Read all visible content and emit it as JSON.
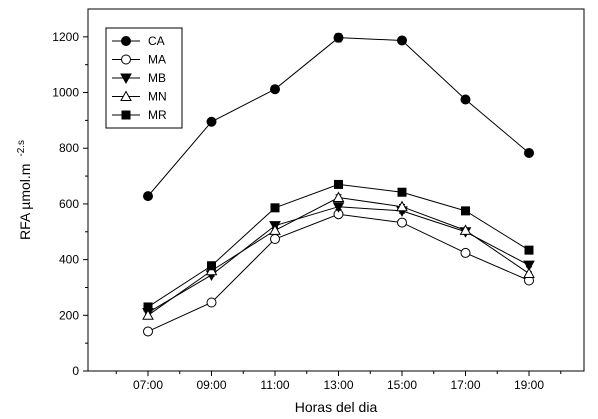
{
  "chart_data": {
    "type": "line",
    "title": "",
    "xlabel": "Horas del dia",
    "ylabel": "RFA µmol.m",
    "ylabel_superscript": "-2.s",
    "categories": [
      "07:00",
      "09:00",
      "11:00",
      "13:00",
      "15:00",
      "17:00",
      "19:00"
    ],
    "ylim": [
      0,
      1300
    ],
    "yticks": [
      0,
      200,
      400,
      600,
      800,
      1000,
      1200
    ],
    "grid": false,
    "legend_position": "top-left",
    "series": [
      {
        "name": "CA",
        "marker": "circle-filled",
        "values": [
          628,
          895,
          1012,
          1197,
          1187,
          975,
          783
        ],
        "errors": [
          8,
          8,
          8,
          15,
          10,
          8,
          8
        ]
      },
      {
        "name": "MA",
        "marker": "circle-open",
        "values": [
          142,
          246,
          474,
          563,
          533,
          424,
          325
        ],
        "errors": [
          5,
          6,
          12,
          10,
          8,
          6,
          6
        ]
      },
      {
        "name": "MB",
        "marker": "triangle-down-filled",
        "values": [
          210,
          345,
          522,
          590,
          575,
          500,
          380
        ],
        "errors": [
          5,
          6,
          10,
          10,
          8,
          6,
          6
        ]
      },
      {
        "name": "MN",
        "marker": "triangle-up-open",
        "values": [
          200,
          360,
          505,
          623,
          590,
          505,
          350
        ],
        "errors": [
          5,
          6,
          10,
          10,
          8,
          6,
          6
        ]
      },
      {
        "name": "MR",
        "marker": "square-filled",
        "values": [
          230,
          378,
          586,
          670,
          642,
          575,
          434
        ],
        "errors": [
          5,
          6,
          10,
          10,
          8,
          8,
          6
        ]
      }
    ]
  }
}
